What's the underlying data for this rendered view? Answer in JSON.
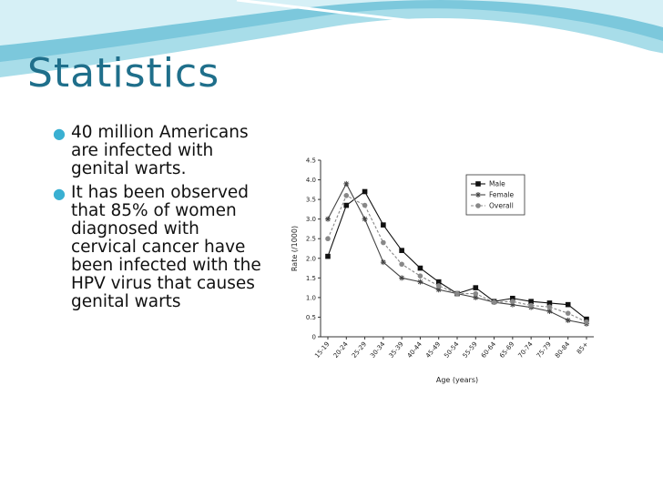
{
  "slide": {
    "title": "Statistics",
    "bullets": [
      "40 million Americans are infected with genital warts.",
      "It has been observed that 85% of women diagnosed with cervical cancer have been infected with the HPV virus that causes genital warts"
    ],
    "accent": "#1f6f8b",
    "bullet_color": "#3ab0d2"
  },
  "chart_data": {
    "type": "line",
    "title": "",
    "xlabel": "Age (years)",
    "ylabel": "Rate (/1000)",
    "categories": [
      "15-19",
      "20-24",
      "25-29",
      "30-34",
      "35-39",
      "40-44",
      "45-49",
      "50-54",
      "55-59",
      "60-64",
      "65-69",
      "70-74",
      "75-79",
      "80-84",
      "85+"
    ],
    "ylim": [
      0,
      4.5
    ],
    "yticks": [
      "0",
      "0.5",
      "1.0",
      "1.5",
      "2.0",
      "2.5",
      "3.0",
      "3.5",
      "4.0",
      "4.5"
    ],
    "legend_position": "top-right",
    "grid": false,
    "series": [
      {
        "name": "Male",
        "marker": "square",
        "color": "#111111",
        "dash": "solid",
        "values": [
          2.05,
          3.35,
          3.7,
          2.85,
          2.2,
          1.75,
          1.4,
          1.1,
          1.25,
          0.9,
          0.98,
          0.9,
          0.86,
          0.82,
          0.45
        ]
      },
      {
        "name": "Female",
        "marker": "star",
        "color": "#444444",
        "dash": "solid",
        "values": [
          3.0,
          3.9,
          3.0,
          1.9,
          1.5,
          1.4,
          1.2,
          1.1,
          1.0,
          0.88,
          0.82,
          0.75,
          0.65,
          0.42,
          0.33
        ]
      },
      {
        "name": "Overall",
        "marker": "circle",
        "color": "#888888",
        "dash": "dashed",
        "values": [
          2.5,
          3.6,
          3.35,
          2.4,
          1.85,
          1.55,
          1.3,
          1.1,
          1.1,
          0.88,
          0.9,
          0.8,
          0.76,
          0.6,
          0.38
        ]
      }
    ]
  }
}
